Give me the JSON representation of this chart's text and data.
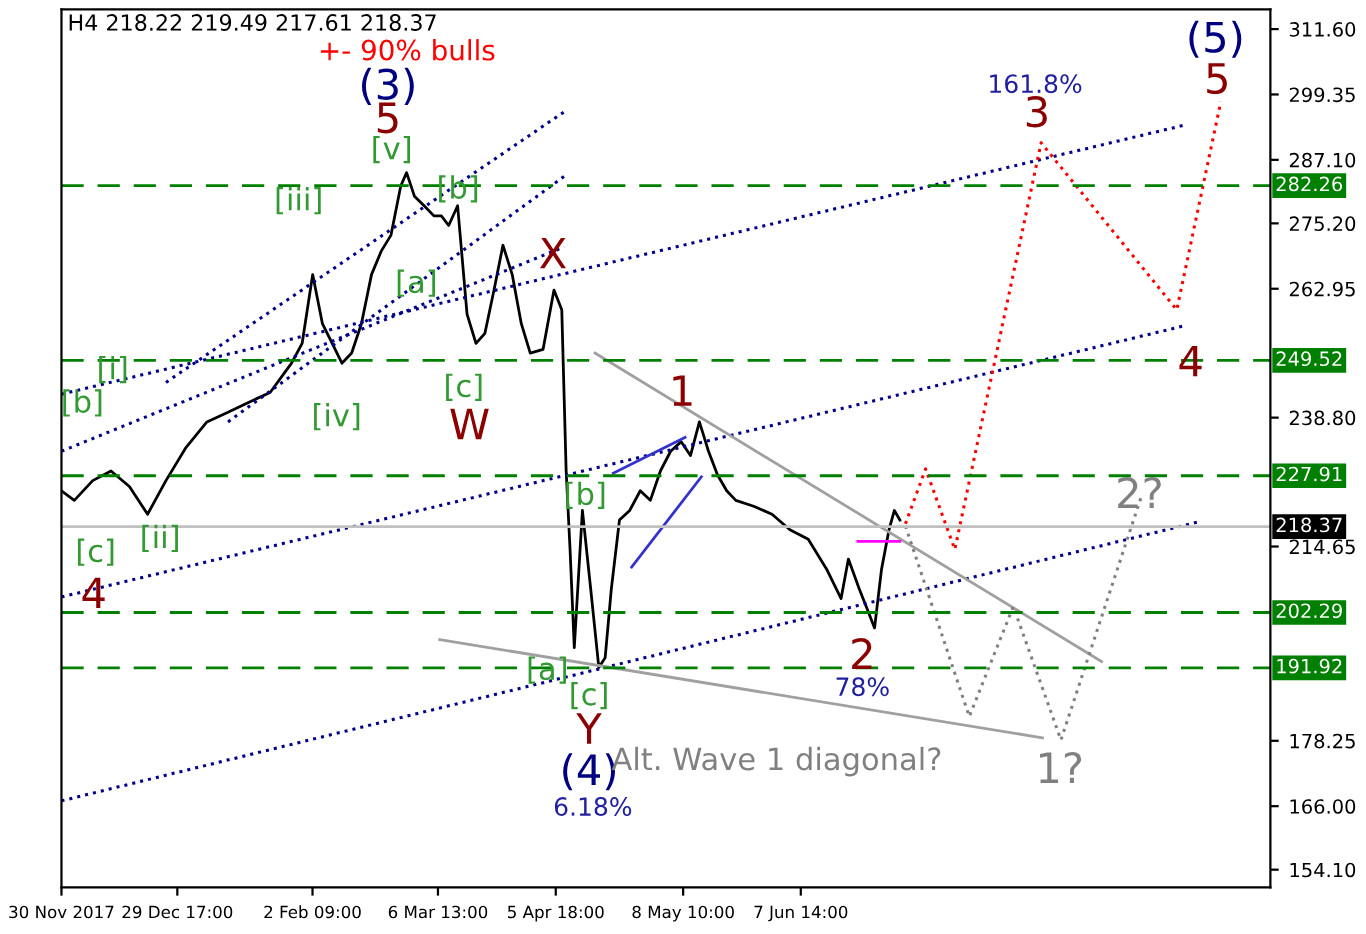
{
  "chart_data": {
    "type": "line",
    "title": "H4 218.22 219.49 217.61 218.37",
    "xlim": [
      "2017-11-30T00:00",
      "2018-10-06T00:00"
    ],
    "xticks": [
      {
        "value": "2017-11-30T00:00",
        "label": "30 Nov 2017"
      },
      {
        "value": "2017-12-29T17:00",
        "label": "29 Dec 17:00"
      },
      {
        "value": "2018-02-02T09:00",
        "label": "2 Feb 09:00"
      },
      {
        "value": "2018-03-06T13:00",
        "label": "6 Mar 13:00"
      },
      {
        "value": "2018-04-05T18:00",
        "label": "5 Apr 18:00"
      },
      {
        "value": "2018-05-08T10:00",
        "label": "8 May 10:00"
      },
      {
        "value": "2018-06-07T14:00",
        "label": "7 Jun 14:00"
      }
    ],
    "ylim": [
      150.8,
      315.3
    ],
    "yticks": [
      {
        "value": 311.6,
        "label": "311.60"
      },
      {
        "value": 299.35,
        "label": "299.35"
      },
      {
        "value": 287.1,
        "label": "287.10"
      },
      {
        "value": 275.2,
        "label": "275.20"
      },
      {
        "value": 262.95,
        "label": "262.95"
      },
      {
        "value": 238.8,
        "label": "238.80"
      },
      {
        "value": 214.65,
        "label": "214.65"
      },
      {
        "value": 178.25,
        "label": "178.25"
      },
      {
        "value": 166.0,
        "label": "166.00"
      },
      {
        "value": 154.1,
        "label": "154.10"
      }
    ],
    "grid": false,
    "legend": false,
    "marker": "none",
    "series": [
      {
        "color": "#000000",
        "line_style": "solid",
        "x": [
          "2017-11-30T00:00",
          "2017-12-03T07:00",
          "2017-12-08T00:00",
          "2017-12-12T17:00",
          "2017-12-17T10:00",
          "2017-12-22T02:00",
          "2017-12-26T19:00",
          "2017-12-31T22:00",
          "2018-01-06T07:00",
          "2018-01-11T17:00",
          "2018-01-17T02:00",
          "2018-01-22T12:00",
          "2018-01-28T00:00",
          "2018-01-30T17:00",
          "2018-02-02T10:00",
          "2018-02-04T22:00",
          "2018-02-07T10:00",
          "2018-02-09T22:00",
          "2018-02-12T10:00",
          "2018-02-14T22:00",
          "2018-02-17T12:00",
          "2018-02-20T00:00",
          "2018-02-22T12:00",
          "2018-02-25T00:00",
          "2018-02-26T12:00",
          "2018-02-28T12:00",
          "2018-03-03T00:00",
          "2018-03-05T12:00",
          "2018-03-07T10:00",
          "2018-03-09T07:00",
          "2018-03-11T14:00",
          "2018-03-14T00:00",
          "2018-03-16T07:00",
          "2018-03-18T14:00",
          "2018-03-20T22:00",
          "2018-03-23T05:00",
          "2018-03-25T14:00",
          "2018-03-27T22:00",
          "2018-03-30T05:00",
          "2018-04-02T12:00",
          "2018-04-05T07:00",
          "2018-04-07T07:00",
          "2018-04-08T10:00",
          "2018-04-09T10:00",
          "2018-04-10T12:00",
          "2018-04-12T14:00",
          "2018-04-14T17:00",
          "2018-04-16T19:00",
          "2018-04-18T10:00",
          "2018-04-20T00:00",
          "2018-04-22T02:00",
          "2018-04-24T17:00",
          "2018-04-27T10:00",
          "2018-04-30T00:00",
          "2018-05-02T14:00",
          "2018-05-05T05:00",
          "2018-05-07T22:00",
          "2018-05-10T07:00",
          "2018-05-12T14:00",
          "2018-05-14T22:00",
          "2018-05-17T05:00",
          "2018-05-19T14:00",
          "2018-05-21T22:00",
          "2018-05-26T12:00",
          "2018-05-31T05:00",
          "2018-06-04T19:00",
          "2018-06-09T12:00",
          "2018-06-14T05:00",
          "2018-06-17T22:00",
          "2018-06-19T19:00",
          "2018-06-22T14:00",
          "2018-06-24T14:00",
          "2018-06-26T12:00",
          "2018-06-28T07:00",
          "2018-06-30T05:00",
          "2018-07-01T14:00",
          "2018-07-03T00:00"
        ],
        "values": [
          225.1,
          223.3,
          227.0,
          228.8,
          225.9,
          220.7,
          227.0,
          233.2,
          238.0,
          239.8,
          241.7,
          243.5,
          249.0,
          252.7,
          265.6,
          256.4,
          252.7,
          249.0,
          250.9,
          256.4,
          265.6,
          270.0,
          273.0,
          282.2,
          284.7,
          280.3,
          278.5,
          276.6,
          276.6,
          274.8,
          278.5,
          258.2,
          252.7,
          254.6,
          262.7,
          271.1,
          265.6,
          256.4,
          250.9,
          251.6,
          262.7,
          259.0,
          228.8,
          214.1,
          195.7,
          221.4,
          206.7,
          192.0,
          193.8,
          206.7,
          219.6,
          221.4,
          225.1,
          223.3,
          228.8,
          232.5,
          234.3,
          231.7,
          238.0,
          232.5,
          228.1,
          225.1,
          223.3,
          222.2,
          220.7,
          217.8,
          216.0,
          210.4,
          204.9,
          212.3,
          206.7,
          203.0,
          199.4,
          210.4,
          217.8,
          221.4,
          219.6
        ]
      },
      {
        "color": "#00008b",
        "line_style": "dotted",
        "x": [
          "2017-11-30T00:00",
          "2018-09-17T05:00"
        ],
        "values": [
          167.0,
          219.2
        ]
      },
      {
        "color": "#00008b",
        "line_style": "dotted",
        "x": [
          "2017-11-30T00:00",
          "2018-09-13T22:00"
        ],
        "values": [
          205.2,
          256.0
        ]
      },
      {
        "color": "#00008b",
        "line_style": "dotted",
        "x": [
          "2017-11-30T00:00",
          "2018-09-13T22:00"
        ],
        "values": [
          243.2,
          293.6
        ]
      },
      {
        "color": "#00008b",
        "line_style": "dotted",
        "x": [
          "2017-12-26T19:00",
          "2018-04-07T22:00"
        ],
        "values": [
          245.4,
          296.1
        ]
      },
      {
        "color": "#00008b",
        "line_style": "dotted",
        "x": [
          "2018-01-11T17:00",
          "2018-04-07T22:00"
        ],
        "values": [
          238.0,
          284.0
        ]
      },
      {
        "color": "#00008b",
        "line_style": "dotted",
        "x": [
          "2017-11-30T00:00",
          "2018-04-07T22:00"
        ],
        "values": [
          232.5,
          270.8
        ]
      },
      {
        "color": "#a0a0a0",
        "line_style": "solid",
        "x": [
          "2018-04-15T19:00",
          "2018-08-23T17:00"
        ],
        "values": [
          250.9,
          193.1
        ]
      },
      {
        "color": "#a0a0a0",
        "line_style": "solid",
        "x": [
          "2018-03-07T00:00",
          "2018-08-08T14:00"
        ],
        "values": [
          197.2,
          178.8
        ]
      },
      {
        "color": "#3333cc",
        "line_style": "solid",
        "x": [
          "2018-04-25T05:00",
          "2018-05-13T02:00"
        ],
        "values": [
          210.8,
          227.7
        ]
      },
      {
        "color": "#3333cc",
        "line_style": "solid",
        "x": [
          "2018-04-20T12:00",
          "2018-05-08T22:00"
        ],
        "values": [
          228.4,
          235.1
        ]
      },
      {
        "color": "#ff00ff",
        "line_style": "solid",
        "x": [
          "2018-06-22T05:00",
          "2018-07-03T00:00"
        ],
        "values": [
          215.6,
          215.6
        ]
      },
      {
        "color": "#ff0000",
        "line_style": "dotted",
        "x": [
          "2018-07-04T10:00",
          "2018-07-09T14:00",
          "2018-07-17T02:00",
          "2018-08-08T05:00",
          "2018-09-12T00:00",
          "2018-09-23T07:00"
        ],
        "values": [
          218.9,
          229.2,
          214.1,
          290.3,
          259.0,
          298.0
        ]
      },
      {
        "color": "#808080",
        "line_style": "dotted",
        "x": [
          "2018-07-04T10:00",
          "2018-07-20T19:00",
          "2018-08-01T02:00",
          "2018-08-13T07:00",
          "2018-09-03T02:00"
        ],
        "values": [
          218.5,
          182.8,
          203.4,
          178.4,
          224.4
        ]
      }
    ],
    "ref_lines": [
      {
        "axis": "y",
        "value": 282.26,
        "label": "282.26",
        "color": "#008000",
        "line_style": "dashed"
      },
      {
        "axis": "y",
        "value": 249.52,
        "label": "249.52",
        "color": "#008000",
        "line_style": "dashed"
      },
      {
        "axis": "y",
        "value": 227.91,
        "label": "227.91",
        "color": "#008000",
        "line_style": "dashed"
      },
      {
        "axis": "y",
        "value": 218.37,
        "label": "218.37",
        "color": "#c0c0c0",
        "line_style": "solid"
      },
      {
        "axis": "y",
        "value": 202.29,
        "label": "202.29",
        "color": "#008000",
        "line_style": "dashed"
      },
      {
        "axis": "y",
        "value": 191.92,
        "label": "191.92",
        "color": "#008000",
        "line_style": "dashed"
      }
    ],
    "annotations": [
      "+- 90% bulls",
      "(3)",
      "5",
      "[v]",
      "[iii]",
      "[b]",
      "[a]",
      "X",
      "[c]",
      "W",
      "[iv]",
      "[i]",
      "[b]",
      "[c]",
      "[ii]",
      "4",
      "[b]",
      "1",
      "[a]",
      "[c]",
      "Y",
      "(4)",
      "6.18%",
      "2",
      "78%",
      "Alt. Wave 1 diagonal?",
      "1?",
      "2?",
      "161.8%",
      "3",
      "(5)",
      "5",
      "4"
    ]
  }
}
